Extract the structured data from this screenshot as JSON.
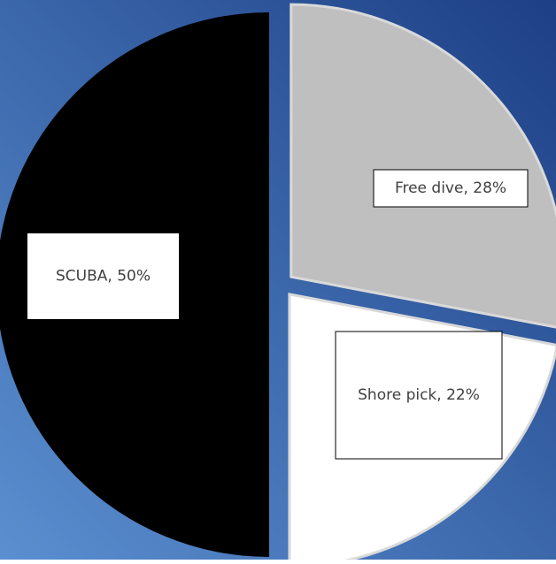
{
  "chart_data": {
    "type": "pie",
    "title": "",
    "slices": [
      {
        "label": "Free dive",
        "value": 28,
        "data_label": "Free dive, 28%",
        "color": "#bfbfbf",
        "exploded": true
      },
      {
        "label": "Shore pick",
        "value": 22,
        "data_label": "Shore pick, 22%",
        "color": "#ffffff",
        "exploded": true
      },
      {
        "label": "SCUBA",
        "value": 50,
        "data_label": "SCUBA, 50%",
        "color": "#000000",
        "exploded": true
      }
    ],
    "legend": "none",
    "background": {
      "gradient_start": "#5a8fd0",
      "gradient_end": "#1d3f86"
    }
  }
}
